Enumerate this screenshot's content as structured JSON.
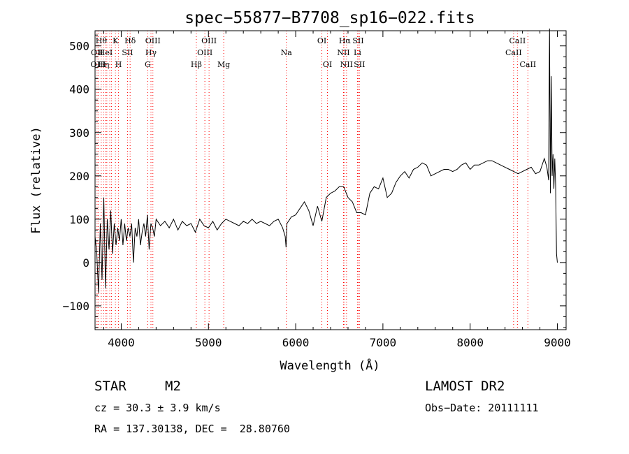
{
  "chart_data": {
    "type": "line",
    "title": "spec−55877−B7708_sp16−022.fits",
    "xlabel": "Wavelength (Å)",
    "ylabel": "Flux (relative)",
    "xlim": [
      3700,
      9100
    ],
    "ylim": [
      -155,
      535
    ],
    "x_ticks": [
      4000,
      5000,
      6000,
      7000,
      8000,
      9000
    ],
    "x_tick_labels": [
      "4000",
      "5000",
      "6000",
      "7000",
      "8000",
      "9000"
    ],
    "y_ticks": [
      -100,
      0,
      100,
      200,
      300,
      400,
      500
    ],
    "y_tick_labels": [
      "−100",
      "0",
      "100",
      "200",
      "300",
      "400",
      "500"
    ],
    "grid": false,
    "line_color": "#000000",
    "marker_color": "#ff0000",
    "series": [
      {
        "x": [
          3700,
          3720,
          3740,
          3760,
          3780,
          3800,
          3820,
          3840,
          3860,
          3880,
          3900,
          3920,
          3940,
          3960,
          3980,
          4000,
          4020,
          4040,
          4060,
          4080,
          4100,
          4120,
          4140,
          4160,
          4180,
          4200,
          4220,
          4240,
          4260,
          4280,
          4300,
          4320,
          4340,
          4360,
          4380,
          4400,
          4450,
          4500,
          4550,
          4600,
          4650,
          4700,
          4750,
          4800,
          4850,
          4900,
          4950,
          5000,
          5050,
          5100,
          5150,
          5200,
          5250,
          5300,
          5350,
          5400,
          5450,
          5500,
          5550,
          5600,
          5650,
          5700,
          5750,
          5800,
          5850,
          5880,
          5890,
          5900,
          5950,
          6000,
          6050,
          6100,
          6150,
          6200,
          6250,
          6300,
          6350,
          6400,
          6450,
          6500,
          6550,
          6600,
          6650,
          6700,
          6750,
          6800,
          6850,
          6900,
          6950,
          7000,
          7050,
          7100,
          7150,
          7200,
          7250,
          7300,
          7350,
          7400,
          7450,
          7500,
          7550,
          7600,
          7650,
          7700,
          7750,
          7800,
          7850,
          7900,
          7950,
          8000,
          8050,
          8100,
          8150,
          8200,
          8250,
          8300,
          8350,
          8400,
          8450,
          8500,
          8550,
          8600,
          8650,
          8700,
          8750,
          8800,
          8850,
          8880,
          8900,
          8910,
          8920,
          8930,
          8940,
          8950,
          8960,
          8970,
          8980,
          8990,
          9000
        ],
        "y": [
          60,
          20,
          -70,
          90,
          -40,
          150,
          -60,
          100,
          30,
          120,
          20,
          90,
          40,
          80,
          50,
          100,
          40,
          90,
          50,
          80,
          60,
          90,
          0,
          80,
          60,
          100,
          40,
          70,
          90,
          60,
          110,
          30,
          90,
          80,
          60,
          100,
          85,
          95,
          80,
          100,
          75,
          95,
          85,
          90,
          70,
          100,
          85,
          80,
          95,
          75,
          90,
          100,
          95,
          90,
          85,
          95,
          90,
          100,
          90,
          95,
          90,
          85,
          95,
          100,
          80,
          60,
          35,
          90,
          105,
          110,
          125,
          140,
          120,
          85,
          130,
          95,
          150,
          160,
          165,
          175,
          175,
          150,
          140,
          115,
          115,
          110,
          160,
          175,
          170,
          195,
          150,
          160,
          185,
          200,
          210,
          195,
          215,
          220,
          230,
          225,
          200,
          205,
          210,
          215,
          215,
          210,
          215,
          225,
          230,
          215,
          225,
          225,
          230,
          235,
          235,
          230,
          225,
          220,
          215,
          210,
          205,
          210,
          215,
          220,
          205,
          210,
          240,
          220,
          190,
          540,
          160,
          430,
          200,
          250,
          170,
          240,
          180,
          20,
          0
        ]
      }
    ],
    "line_markers": [
      {
        "x": 3723,
        "label": "OII",
        "row": 1
      },
      {
        "x": 3736,
        "label": "OIII",
        "row": 2
      },
      {
        "x": 3771,
        "label": "Hθ",
        "row": 0
      },
      {
        "x": 3798,
        "label": "Hη",
        "row": 2
      },
      {
        "x": 3820,
        "label": "HeI",
        "row": 1
      },
      {
        "x": 3835,
        "label": "",
        "row": -1
      },
      {
        "x": 3869,
        "label": "",
        "row": -1
      },
      {
        "x": 3889,
        "label": "",
        "row": -1
      },
      {
        "x": 3934,
        "label": "K",
        "row": 0
      },
      {
        "x": 3969,
        "label": "H",
        "row": 2
      },
      {
        "x": 4072,
        "label": "SII",
        "row": 1
      },
      {
        "x": 4102,
        "label": "Hδ",
        "row": 0
      },
      {
        "x": 4304,
        "label": "G",
        "row": 2
      },
      {
        "x": 4341,
        "label": "Hγ",
        "row": 1
      },
      {
        "x": 4363,
        "label": "OIII",
        "row": 0
      },
      {
        "x": 4861,
        "label": "Hβ",
        "row": 2
      },
      {
        "x": 4959,
        "label": "OIII",
        "row": 1
      },
      {
        "x": 5007,
        "label": "OIII",
        "row": 0
      },
      {
        "x": 5175,
        "label": "Mg",
        "row": 2
      },
      {
        "x": 5893,
        "label": "Na",
        "row": 1
      },
      {
        "x": 6300,
        "label": "OI",
        "row": 0
      },
      {
        "x": 6364,
        "label": "OI",
        "row": 2
      },
      {
        "x": 6548,
        "label": "NII",
        "row": 1
      },
      {
        "x": 6563,
        "label": "Hα",
        "row": 0
      },
      {
        "x": 6583,
        "label": "NII",
        "row": 2
      },
      {
        "x": 6708,
        "label": "Li",
        "row": 1
      },
      {
        "x": 6716,
        "label": "SII",
        "row": 0
      },
      {
        "x": 6731,
        "label": "SII",
        "row": 2
      },
      {
        "x": 8498,
        "label": "CaII",
        "row": 1
      },
      {
        "x": 8542,
        "label": "CaII",
        "row": 0
      },
      {
        "x": 8662,
        "label": "CaII",
        "row": 2
      }
    ]
  },
  "info": {
    "class_label": "STAR",
    "subclass": "M2",
    "survey": "LAMOST DR2",
    "velocity": "cz = 30.3 ± 3.9 km/s",
    "obs_date": "Obs−Date: 20111111",
    "coords": "RA = 137.30138, DEC =  28.80760"
  }
}
